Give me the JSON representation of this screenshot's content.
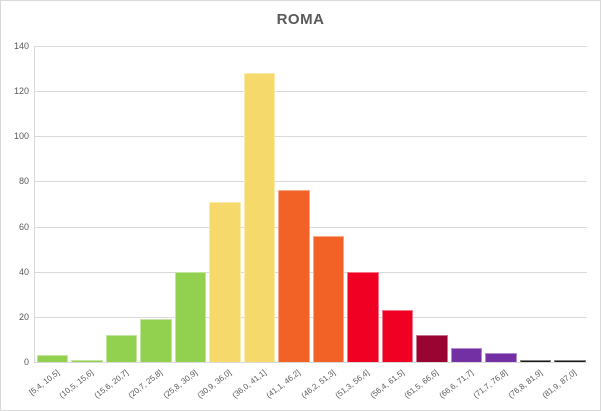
{
  "chart_data": {
    "type": "bar",
    "subtype": "histogram",
    "title": "ROMA",
    "xlabel": "",
    "ylabel": "",
    "categories": [
      "[5,4, 10,5]",
      "(10,5, 15,6]",
      "(15,6, 20,7]",
      "(20,7, 25,8]",
      "(25,8, 30,9]",
      "(30,9, 36,0]",
      "(36,0, 41,1]",
      "(41,1, 46,2]",
      "(46,2, 51,3]",
      "(51,3, 56,4]",
      "(56,4, 61,5]",
      "(61,5, 66,6]",
      "(66,6, 71,7]",
      "(71,7, 76,8]",
      "(76,8, 81,9]",
      "(81,9, 87,0]"
    ],
    "values": [
      3,
      1,
      12,
      19,
      40,
      71,
      128,
      76,
      56,
      40,
      23,
      12,
      6,
      4,
      1,
      1
    ],
    "bar_colors": [
      "#92D050",
      "#92D050",
      "#92D050",
      "#92D050",
      "#92D050",
      "#F6D96B",
      "#F6D96B",
      "#F26125",
      "#F26125",
      "#F00023",
      "#F00023",
      "#9A0433",
      "#7230A4",
      "#7230A4",
      "#1A1A1A",
      "#1A1A1A"
    ],
    "y_ticks": [
      0,
      20,
      40,
      60,
      80,
      100,
      120,
      140
    ],
    "ylim": [
      0,
      140
    ],
    "grid": true,
    "legend": false,
    "layout": {
      "x_label_rotation_deg": 38
    },
    "colors": {
      "background": "#FFFFFF",
      "chart_border": "#D9D9D9",
      "gridline": "#D9D9D9",
      "axis_line": "#D9D9D9",
      "title_text": "#595959",
      "axis_text": "#595959",
      "green": "#92D050",
      "yellow": "#F6D96B",
      "orange": "#F26125",
      "red": "#F00023",
      "dark_red": "#9A0433",
      "purple": "#7230A4",
      "black": "#1A1A1A"
    }
  }
}
